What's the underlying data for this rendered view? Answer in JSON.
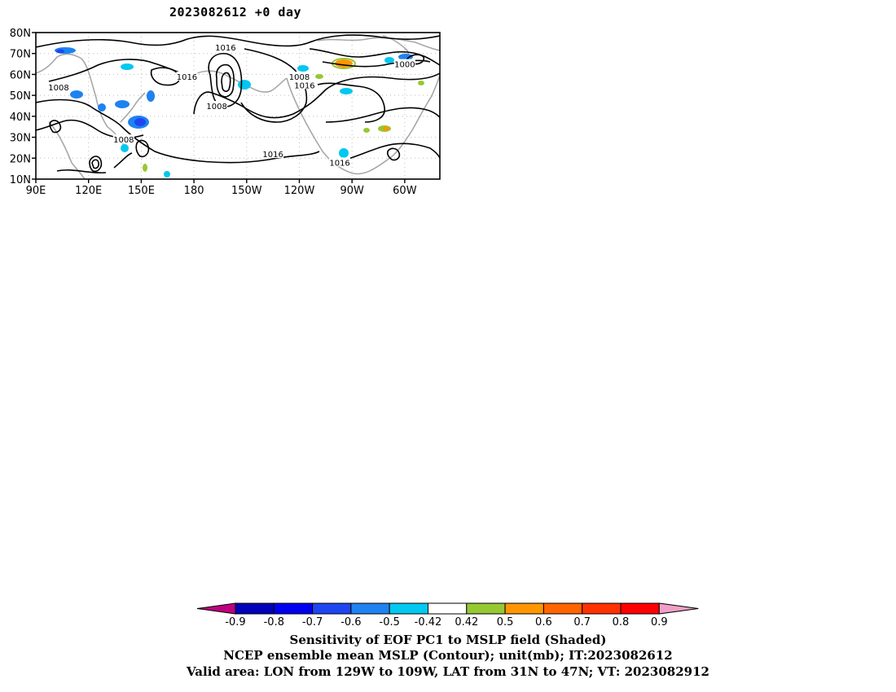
{
  "title": "2023082612  +0 day",
  "chart_data": {
    "type": "heatmap",
    "title": "2023082612  +0 day",
    "xlabel": "",
    "ylabel": "",
    "x_ticks": [
      "90E",
      "120E",
      "150E",
      "180",
      "150W",
      "120W",
      "90W",
      "60W"
    ],
    "x_tick_values": [
      90,
      120,
      150,
      180,
      210,
      240,
      270,
      300
    ],
    "y_ticks": [
      "10N",
      "20N",
      "30N",
      "40N",
      "50N",
      "60N",
      "70N",
      "80N"
    ],
    "y_tick_values": [
      10,
      20,
      30,
      40,
      50,
      60,
      70,
      80
    ],
    "xlim": [
      90,
      320
    ],
    "ylim": [
      10,
      80
    ],
    "grid": true,
    "contour_labels": [
      {
        "text": "1016",
        "lon": 198,
        "lat": 73
      },
      {
        "text": "1008",
        "lon": 103,
        "lat": 54
      },
      {
        "text": "1016",
        "lon": 176,
        "lat": 59
      },
      {
        "text": "1008",
        "lon": 193,
        "lat": 45
      },
      {
        "text": "1008",
        "lon": 240,
        "lat": 59
      },
      {
        "text": "1016",
        "lon": 243,
        "lat": 55
      },
      {
        "text": "1000",
        "lon": 300,
        "lat": 65
      },
      {
        "text": "1008",
        "lon": 140,
        "lat": 29
      },
      {
        "text": "1016",
        "lon": 225,
        "lat": 22
      },
      {
        "text": "1016",
        "lon": 263,
        "lat": 18
      }
    ],
    "colorbar": {
      "levels": [
        "-0.9",
        "-0.8",
        "-0.7",
        "-0.6",
        "-0.5",
        "-0.42",
        "0.42",
        "0.5",
        "0.6",
        "0.7",
        "0.8",
        "0.9"
      ],
      "colors": [
        "#c0007f",
        "#0000b8",
        "#0000f0",
        "#1e46f0",
        "#1e82f0",
        "#00c8f0",
        "#ffffff",
        "#96c832",
        "#ff9600",
        "#ff6400",
        "#ff3200",
        "#ff0000",
        "#f0a0c8"
      ]
    }
  },
  "captions": {
    "line1": "Sensitivity of EOF PC1 to MSLP field (Shaded)",
    "line2": "NCEP ensemble mean MSLP (Contour); unit(mb); IT:2023082612",
    "line3": "Valid area: LON from 129W to 109W, LAT from 31N to 47N; VT: 2023082912"
  }
}
